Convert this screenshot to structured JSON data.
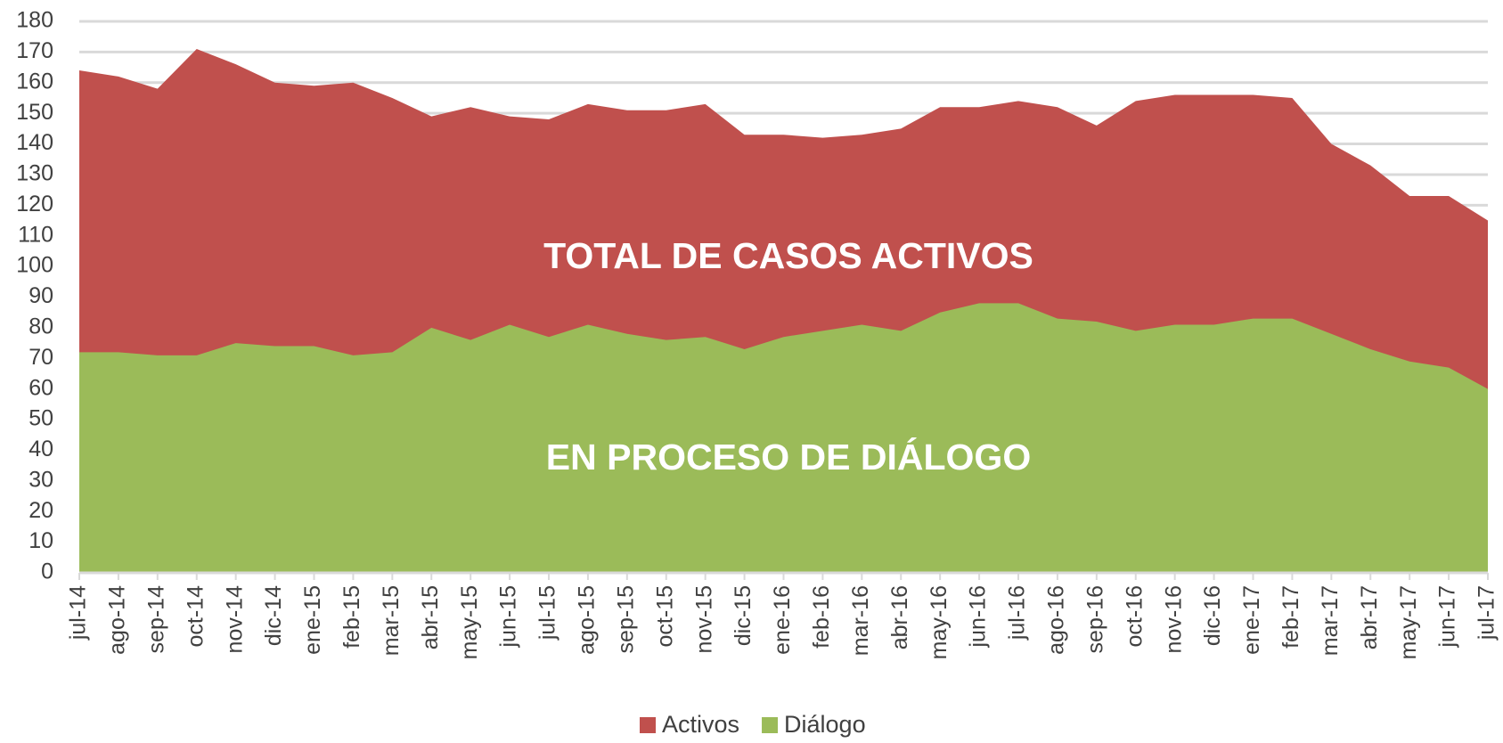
{
  "chart_data": {
    "type": "area",
    "categories": [
      "jul-14",
      "ago-14",
      "sep-14",
      "oct-14",
      "nov-14",
      "dic-14",
      "ene-15",
      "feb-15",
      "mar-15",
      "abr-15",
      "may-15",
      "jun-15",
      "jul-15",
      "ago-15",
      "sep-15",
      "oct-15",
      "nov-15",
      "dic-15",
      "ene-16",
      "feb-16",
      "mar-16",
      "abr-16",
      "may-16",
      "jun-16",
      "jul-16",
      "ago-16",
      "sep-16",
      "oct-16",
      "nov-16",
      "dic-16",
      "ene-17",
      "feb-17",
      "mar-17",
      "abr-17",
      "may-17",
      "jun-17",
      "jul-17"
    ],
    "series": [
      {
        "name": "Activos",
        "color": "#c0504d",
        "values": [
          164,
          162,
          158,
          171,
          166,
          160,
          159,
          160,
          155,
          149,
          152,
          149,
          148,
          153,
          151,
          151,
          153,
          143,
          143,
          142,
          143,
          145,
          152,
          152,
          154,
          152,
          146,
          154,
          156,
          156,
          156,
          155,
          140,
          133,
          123,
          123,
          115
        ]
      },
      {
        "name": "Diálogo",
        "color": "#9bbb59",
        "values": [
          72,
          72,
          71,
          71,
          75,
          74,
          74,
          71,
          72,
          80,
          76,
          81,
          77,
          81,
          78,
          76,
          77,
          73,
          77,
          79,
          81,
          79,
          85,
          88,
          88,
          83,
          82,
          79,
          81,
          81,
          83,
          83,
          78,
          73,
          69,
          67,
          60
        ]
      }
    ],
    "annotations": [
      "TOTAL DE CASOS ACTIVOS",
      "EN PROCESO DE DIÁLOGO"
    ],
    "ylim": [
      0,
      180
    ],
    "yticks": [
      0,
      10,
      20,
      30,
      40,
      50,
      60,
      70,
      80,
      90,
      100,
      110,
      120,
      130,
      140,
      150,
      160,
      170,
      180
    ],
    "grid": true,
    "legend": "bottom"
  }
}
